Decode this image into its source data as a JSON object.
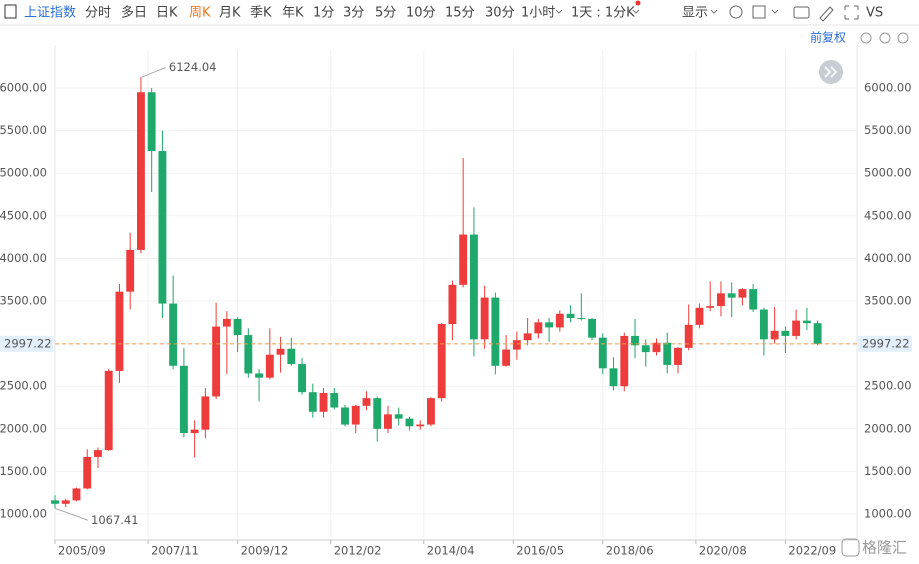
{
  "toolbar": {
    "symbol": "上证指数",
    "periods": [
      "分时",
      "多日",
      "日K",
      "周K",
      "月K",
      "季K",
      "年K",
      "1分",
      "3分",
      "5分",
      "10分",
      "15分",
      "30分",
      "1小时"
    ],
    "active_period": 3,
    "interval": "1天 : 1分K",
    "display": "显示",
    "compare": "VS",
    "adjust": "前复权"
  },
  "watermark": "格隆汇",
  "chart_data": {
    "type": "candlestick",
    "x": [
      "2005/09",
      "2005/12",
      "2006/03",
      "2006/06",
      "2006/09",
      "2006/12",
      "2007/03",
      "2007/06",
      "2007/09",
      "2007/12",
      "2008/03",
      "2008/06",
      "2008/09",
      "2008/12",
      "2009/03",
      "2009/06",
      "2009/09",
      "2009/12",
      "2010/03",
      "2010/06",
      "2010/09",
      "2010/12",
      "2011/03",
      "2011/06",
      "2011/09",
      "2011/12",
      "2012/03",
      "2012/06",
      "2012/09",
      "2012/12",
      "2013/03",
      "2013/06",
      "2013/09",
      "2013/12",
      "2014/03",
      "2014/06",
      "2014/09",
      "2014/12",
      "2015/03",
      "2015/06",
      "2015/09",
      "2015/12",
      "2016/03",
      "2016/06",
      "2016/09",
      "2016/12",
      "2017/03",
      "2017/06",
      "2017/09",
      "2017/12",
      "2018/03",
      "2018/06",
      "2018/09",
      "2018/12",
      "2019/03",
      "2019/06",
      "2019/09",
      "2019/12",
      "2020/03",
      "2020/06",
      "2020/09",
      "2020/12",
      "2021/03",
      "2021/06",
      "2021/09",
      "2021/12",
      "2022/03",
      "2022/06",
      "2022/09",
      "2022/12",
      "2023/03",
      "2023/06"
    ],
    "open": [
      1160,
      1120,
      1160,
      1300,
      1670,
      1750,
      2680,
      3610,
      4100,
      5950,
      5260,
      3470,
      2740,
      1950,
      1990,
      2380,
      3200,
      3290,
      3100,
      2650,
      2600,
      2870,
      2940,
      2760,
      2430,
      2200,
      2420,
      2250,
      2050,
      2270,
      2360,
      2000,
      2170,
      2120,
      2030,
      2050,
      2360,
      3230,
      3690,
      4280,
      3050,
      3540,
      2740,
      2930,
      3040,
      3120,
      3250,
      3190,
      3350,
      3300,
      3290,
      3070,
      2710,
      2500,
      3090,
      2980,
      2900,
      3010,
      2750,
      2950,
      3220,
      3420,
      3440,
      3590,
      3540,
      3640,
      3400,
      3050,
      3150,
      3090,
      3270,
      3240
    ],
    "high": [
      1220,
      1180,
      1310,
      1760,
      1780,
      2700,
      3700,
      4300,
      6124.04,
      6000,
      5500,
      3800,
      2950,
      2100,
      2480,
      3480,
      3380,
      3310,
      3180,
      2700,
      3180,
      3080,
      3070,
      2830,
      2530,
      2480,
      2480,
      2280,
      2280,
      2440,
      2380,
      2270,
      2250,
      2140,
      2100,
      2370,
      3240,
      3740,
      5178,
      4600,
      3680,
      3600,
      3100,
      3140,
      3300,
      3290,
      3300,
      3390,
      3450,
      3590,
      3300,
      3120,
      2840,
      3130,
      3290,
      3050,
      3060,
      3130,
      2960,
      3460,
      3470,
      3730,
      3730,
      3720,
      3650,
      3700,
      3420,
      3430,
      3200,
      3400,
      3420,
      3270
    ],
    "low": [
      1067.41,
      1080,
      1150,
      1290,
      1540,
      1740,
      2540,
      3400,
      4060,
      4780,
      3300,
      2700,
      1900,
      1664,
      1890,
      2350,
      2640,
      2900,
      2600,
      2320,
      2580,
      2660,
      2740,
      2400,
      2130,
      2130,
      2230,
      2030,
      1950,
      2220,
      1850,
      1950,
      2040,
      1980,
      1990,
      2030,
      2320,
      3040,
      3660,
      2850,
      2940,
      2640,
      2730,
      2810,
      2980,
      3060,
      3020,
      3140,
      3250,
      3270,
      3040,
      2640,
      2450,
      2440,
      2830,
      2730,
      2860,
      2650,
      2650,
      2920,
      3180,
      3380,
      3320,
      3310,
      3450,
      3370,
      2860,
      3000,
      2890,
      3050,
      3160,
      2980
    ],
    "close": [
      1120,
      1160,
      1300,
      1670,
      1750,
      2680,
      3610,
      4100,
      5950,
      5260,
      3470,
      2740,
      1950,
      1990,
      2380,
      3200,
      3290,
      3100,
      2650,
      2600,
      2870,
      2940,
      2760,
      2430,
      2200,
      2420,
      2250,
      2050,
      2270,
      2360,
      2000,
      2170,
      2120,
      2030,
      2050,
      2360,
      3230,
      3690,
      4280,
      3050,
      3540,
      2740,
      2930,
      3040,
      3120,
      3250,
      3190,
      3350,
      3300,
      3290,
      3070,
      2710,
      2500,
      3090,
      2980,
      2900,
      3010,
      2750,
      2950,
      3220,
      3420,
      3440,
      3590,
      3540,
      3640,
      3400,
      3050,
      3150,
      3090,
      3270,
      3240,
      2997.22
    ],
    "up_color": "#ee3b3b",
    "down_color": "#1ea86b",
    "xlim": [
      "2005/09",
      "2024/05"
    ],
    "xticks": [
      "2005/09",
      "2007/11",
      "2009/12",
      "2012/02",
      "2014/04",
      "2016/05",
      "2018/06",
      "2020/08",
      "2022/09"
    ],
    "ylim": [
      695,
      6446
    ],
    "yticks": [
      {
        "value": 1000,
        "label": "1000.00"
      },
      {
        "value": 1500,
        "label": "1500.00"
      },
      {
        "value": 2000,
        "label": "2000.00"
      },
      {
        "value": 2500,
        "label": "2500.00"
      },
      {
        "value": 3000,
        "label": "3000.00"
      },
      {
        "value": 3500,
        "label": "3500.00"
      },
      {
        "value": 4000,
        "label": "4000.00"
      },
      {
        "value": 4500,
        "label": "4500.00"
      },
      {
        "value": 5000,
        "label": "5000.00"
      },
      {
        "value": 5500,
        "label": "5500.00"
      },
      {
        "value": 6000,
        "label": "6000.00"
      }
    ],
    "grid": true,
    "last_price": 2997.22,
    "last_price_color": "#f0a050",
    "annotations": [
      {
        "x": "2007/09",
        "value": 6124.04
      },
      {
        "x": "2005/09",
        "value": 1067.41
      }
    ]
  }
}
